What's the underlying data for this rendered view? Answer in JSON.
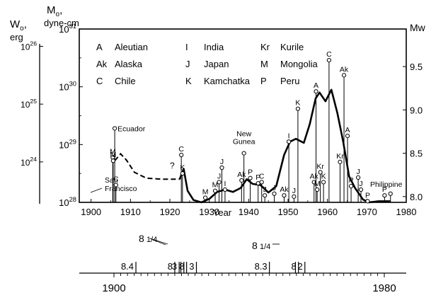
{
  "chart_data": {
    "type": "line",
    "xlabel": "Year",
    "xlim": [
      1897,
      1980
    ],
    "x_ticks": [
      1900,
      1910,
      1920,
      1930,
      1940,
      1950,
      1960,
      1970,
      1980
    ],
    "m0_axis": {
      "label_line1": "M",
      "label_sub": "o",
      "label_comma": ",",
      "label_line2": "dyne-cm",
      "range_log10": [
        28,
        31
      ],
      "ticks": [
        {
          "base": "10",
          "exp": "31",
          "log10": 31
        },
        {
          "base": "10",
          "exp": "30",
          "log10": 30
        },
        {
          "base": "10",
          "exp": "29",
          "log10": 29
        },
        {
          "base": "10",
          "exp": "28",
          "log10": 28
        }
      ]
    },
    "w0_axis": {
      "label_line1": "W",
      "label_sub": "o",
      "label_comma": ",",
      "label_line2": "erg",
      "ticks": [
        {
          "base": "10",
          "exp": "26",
          "log10": 26
        },
        {
          "base": "10",
          "exp": "25",
          "log10": 25
        },
        {
          "base": "10",
          "exp": "24",
          "log10": 24
        }
      ]
    },
    "mw_axis": {
      "label": "Mw",
      "ticks": [
        {
          "label": "9.5",
          "value": 9.5
        },
        {
          "label": "9.0",
          "value": 9.0
        },
        {
          "label": "8.5",
          "value": 8.5
        },
        {
          "label": "8.0",
          "value": 8.0
        }
      ]
    },
    "legend": [
      {
        "code": "A",
        "name": "Aleutian"
      },
      {
        "code": "I",
        "name": "India"
      },
      {
        "code": "Kr",
        "name": "Kurile"
      },
      {
        "code": "Ak",
        "name": "Alaska"
      },
      {
        "code": "J",
        "name": "Japan"
      },
      {
        "code": "M",
        "name": "Mongolia"
      },
      {
        "code": "C",
        "name": "Chile"
      },
      {
        "code": "K",
        "name": "Kamchatka"
      },
      {
        "code": "P",
        "name": "Peru"
      }
    ],
    "events": [
      {
        "year": 1906.0,
        "log_m0": 29.28,
        "label": "Ecuador"
      },
      {
        "year": 1905.5,
        "log_m0": 28.78,
        "label": "M"
      },
      {
        "year": 1905.6,
        "log_m0": 28.72,
        "label": "M"
      },
      {
        "year": 1906.3,
        "log_m0": 28.3,
        "label": "C"
      },
      {
        "year": 1922.9,
        "log_m0": 28.82,
        "label": "C"
      },
      {
        "year": 1923.2,
        "log_m0": 28.5,
        "label": "K"
      },
      {
        "year": 1929.0,
        "log_m0": 28.08,
        "label": "M"
      },
      {
        "year": 1931.5,
        "log_m0": 28.2,
        "label": "M"
      },
      {
        "year": 1932.5,
        "log_m0": 28.35,
        "label": "J"
      },
      {
        "year": 1933.2,
        "log_m0": 28.6,
        "label": "J"
      },
      {
        "year": 1934.0,
        "log_m0": 28.22,
        "label": "I"
      },
      {
        "year": 1938.2,
        "log_m0": 28.38,
        "label": "Ak"
      },
      {
        "year": 1938.8,
        "log_m0": 28.85,
        "label": "New Gunea"
      },
      {
        "year": 1940.4,
        "log_m0": 28.42,
        "label": "P"
      },
      {
        "year": 1942.4,
        "log_m0": 28.33,
        "label": "P"
      },
      {
        "year": 1943.3,
        "log_m0": 28.35,
        "label": "C"
      },
      {
        "year": 1944.1,
        "log_m0": 28.12,
        "label": "J"
      },
      {
        "year": 1946.5,
        "log_m0": 28.15,
        "label": "J"
      },
      {
        "year": 1949.0,
        "log_m0": 28.12,
        "label": "Ak"
      },
      {
        "year": 1950.2,
        "log_m0": 29.05,
        "label": "I"
      },
      {
        "year": 1951.5,
        "log_m0": 28.1,
        "label": "J"
      },
      {
        "year": 1952.5,
        "log_m0": 29.62,
        "label": "K"
      },
      {
        "year": 1956.6,
        "log_m0": 28.35,
        "label": "Ak"
      },
      {
        "year": 1957.1,
        "log_m0": 29.92,
        "label": "A"
      },
      {
        "year": 1957.4,
        "log_m0": 28.22,
        "label": "M"
      },
      {
        "year": 1958.2,
        "log_m0": 28.52,
        "label": "Kr"
      },
      {
        "year": 1959.0,
        "log_m0": 28.35,
        "label": "K"
      },
      {
        "year": 1960.4,
        "log_m0": 30.46,
        "label": "C"
      },
      {
        "year": 1963.2,
        "log_m0": 28.7,
        "label": "Kr"
      },
      {
        "year": 1964.2,
        "log_m0": 30.2,
        "label": "Ak"
      },
      {
        "year": 1965.1,
        "log_m0": 29.15,
        "label": "A"
      },
      {
        "year": 1966.0,
        "log_m0": 28.28,
        "label": "P"
      },
      {
        "year": 1967.8,
        "log_m0": 28.43,
        "label": "J"
      },
      {
        "year": 1968.5,
        "log_m0": 28.22,
        "label": "J"
      },
      {
        "year": 1970.2,
        "log_m0": 28.02,
        "label": "P"
      },
      {
        "year": 1974.5,
        "log_m0": 28.12,
        "label": "P"
      },
      {
        "year": 1976.0,
        "log_m0": 28.15,
        "label": "Philippine"
      }
    ],
    "extra_labels": {
      "san": "San",
      "francisco": "Francisco",
      "question": "?"
    },
    "dashed_curve": [
      [
        1906,
        28.72
      ],
      [
        1907.5,
        28.84
      ],
      [
        1909,
        28.73
      ],
      [
        1911,
        28.52
      ],
      [
        1914,
        28.42
      ],
      [
        1918,
        28.4
      ],
      [
        1922.5,
        28.4
      ]
    ],
    "solid_curve": [
      [
        1922.5,
        28.4
      ],
      [
        1923.5,
        28.58
      ],
      [
        1924.5,
        28.2
      ],
      [
        1926,
        28.04
      ],
      [
        1928,
        28.0
      ],
      [
        1930,
        28.06
      ],
      [
        1932,
        28.18
      ],
      [
        1934,
        28.22
      ],
      [
        1936,
        28.18
      ],
      [
        1938,
        28.25
      ],
      [
        1939.5,
        28.4
      ],
      [
        1941,
        28.32
      ],
      [
        1943,
        28.3
      ],
      [
        1945,
        28.17
      ],
      [
        1947,
        28.28
      ],
      [
        1949,
        28.82
      ],
      [
        1950.5,
        29.05
      ],
      [
        1952,
        29.1
      ],
      [
        1954,
        29.03
      ],
      [
        1955.5,
        29.35
      ],
      [
        1957,
        29.8
      ],
      [
        1958,
        29.9
      ],
      [
        1959.5,
        29.75
      ],
      [
        1961,
        29.95
      ],
      [
        1962.5,
        29.55
      ],
      [
        1964,
        29.05
      ],
      [
        1965.5,
        28.45
      ],
      [
        1967,
        28.25
      ],
      [
        1969,
        28.05
      ],
      [
        1970.5,
        28.0
      ],
      [
        1973,
        28.02
      ],
      [
        1976,
        28.02
      ]
    ]
  },
  "lower_axis": {
    "start_label": "1900",
    "end_label": "1980",
    "xlim": [
      1900,
      1980
    ],
    "minor_ticks": [
      1902,
      1904,
      1906,
      1908,
      1910,
      1912,
      1914,
      1916,
      1918,
      1920,
      1922,
      1924,
      1926,
      1928,
      1930,
      1932,
      1934,
      1936,
      1938,
      1940,
      1942,
      1944,
      1946,
      1948,
      1950,
      1952,
      1954,
      1956,
      1958,
      1960,
      1962,
      1964,
      1966,
      1968,
      1970,
      1972,
      1974,
      1976,
      1978
    ],
    "events": [
      {
        "year": 1906.5,
        "label": "8.4"
      },
      {
        "year": 1918.0,
        "label": "8"
      },
      {
        "year": 1919.3,
        "label": "3"
      },
      {
        "year": 1919.8,
        "label": ""
      },
      {
        "year": 1920.7,
        "label": ""
      },
      {
        "year": 1921.5,
        "label": "8"
      },
      {
        "year": 1924.4,
        "label": "3"
      },
      {
        "year": 1946.0,
        "label": "8.3"
      },
      {
        "year": 1953.7,
        "label": ""
      },
      {
        "year": 1954.6,
        "label": "8"
      },
      {
        "year": 1956.5,
        "label": "2"
      }
    ],
    "callouts": [
      {
        "label": "8 1/4",
        "whole": "8",
        "fraction": "1/4"
      },
      {
        "label": "8 1/4",
        "whole": "8",
        "fraction": "1/4"
      }
    ]
  }
}
